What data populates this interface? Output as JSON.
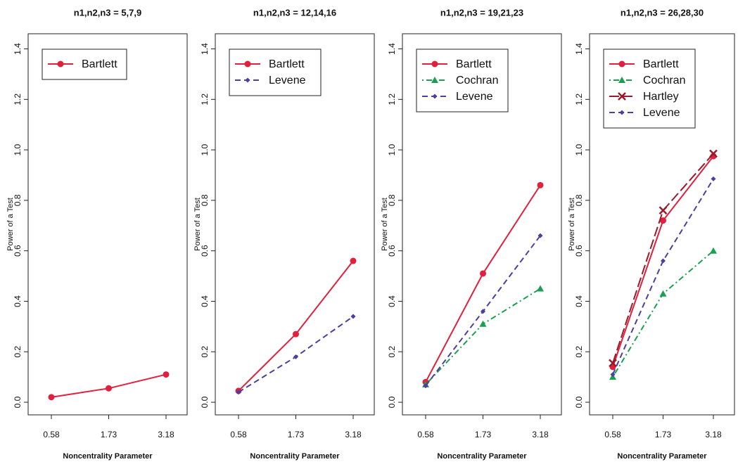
{
  "chart_data": [
    {
      "type": "line",
      "title": "n1,n2,n3 = 5,7,9",
      "x_label": "Noncentrality Parameter",
      "y_label": "Power of a Test",
      "categories": [
        "0.58",
        "1.73",
        "3.18"
      ],
      "series": [
        {
          "name": "Bartlett",
          "color": "#e0203c",
          "dash": "solid",
          "marker": "circle",
          "values": [
            0.02,
            0.055,
            0.11
          ]
        }
      ],
      "ylim": [
        -0.05,
        1.46
      ],
      "yticks": [
        {
          "value": 0,
          "label": "0.0"
        },
        0.2,
        0.4,
        0.6,
        0.8,
        {
          "value": 1,
          "label": "1.0"
        },
        1.2,
        1.4
      ],
      "legend": "top-left"
    },
    {
      "type": "line",
      "title": "n1,n2,n3 = 12,14,16",
      "x_label": "Noncentrality Parameter",
      "y_label": "Power of a Test",
      "categories": [
        "0.58",
        "1.73",
        "3.18"
      ],
      "series": [
        {
          "name": "Bartlett",
          "color": "#e0203c",
          "dash": "solid",
          "marker": "circle",
          "values": [
            0.045,
            0.27,
            0.56
          ]
        },
        {
          "name": "Levene",
          "color": "#4b3f9f",
          "dash": "dashed",
          "marker": "diamond",
          "values": [
            0.04,
            0.18,
            0.34
          ]
        }
      ],
      "ylim": [
        -0.05,
        1.46
      ],
      "yticks": [
        {
          "value": 0,
          "label": "0.0"
        },
        0.2,
        0.4,
        0.6,
        0.8,
        {
          "value": 1,
          "label": "1.0"
        },
        1.2,
        1.4
      ],
      "legend": "top-left"
    },
    {
      "type": "line",
      "title": "n1,n2,n3 = 19,21,23",
      "x_label": "Noncentrality Parameter",
      "y_label": "Power of a Test",
      "categories": [
        "0.58",
        "1.73",
        "3.18"
      ],
      "series": [
        {
          "name": "Bartlett",
          "color": "#e0203c",
          "dash": "solid",
          "marker": "circle",
          "values": [
            0.08,
            0.51,
            0.86
          ]
        },
        {
          "name": "Cochran",
          "color": "#1aa050",
          "dash": "dotdash",
          "marker": "triangle",
          "values": [
            0.07,
            0.31,
            0.45
          ]
        },
        {
          "name": "Levene",
          "color": "#4b3f9f",
          "dash": "dashed",
          "marker": "diamond",
          "values": [
            0.065,
            0.36,
            0.66
          ]
        }
      ],
      "ylim": [
        -0.05,
        1.46
      ],
      "yticks": [
        {
          "value": 0,
          "label": "0.0"
        },
        0.2,
        0.4,
        0.6,
        0.8,
        {
          "value": 1,
          "label": "1.0"
        },
        1.2,
        1.4
      ],
      "legend": "top-left"
    },
    {
      "type": "line",
      "title": "n1,n2,n3 = 26,28,30",
      "x_label": "Noncentrality Parameter",
      "y_label": "Power of a Test",
      "categories": [
        "0.58",
        "1.73",
        "3.18"
      ],
      "series": [
        {
          "name": "Bartlett",
          "color": "#e0203c",
          "dash": "solid",
          "marker": "circle",
          "values": [
            0.14,
            0.72,
            0.975
          ]
        },
        {
          "name": "Cochran",
          "color": "#1aa050",
          "dash": "dotdash",
          "marker": "triangle",
          "values": [
            0.1,
            0.43,
            0.6
          ]
        },
        {
          "name": "Hartley",
          "color": "#9b1a2a",
          "dash": "longdash",
          "marker": "cross",
          "values": [
            0.155,
            0.76,
            0.985
          ]
        },
        {
          "name": "Levene",
          "color": "#4b3f9f",
          "dash": "dashed",
          "marker": "diamond",
          "values": [
            0.11,
            0.56,
            0.885
          ]
        }
      ],
      "ylim": [
        -0.05,
        1.46
      ],
      "yticks": [
        {
          "value": 0,
          "label": "0.0"
        },
        0.2,
        0.4,
        0.6,
        0.8,
        {
          "value": 1,
          "label": "1.0"
        },
        1.2,
        1.4
      ],
      "legend": "top-left"
    }
  ]
}
